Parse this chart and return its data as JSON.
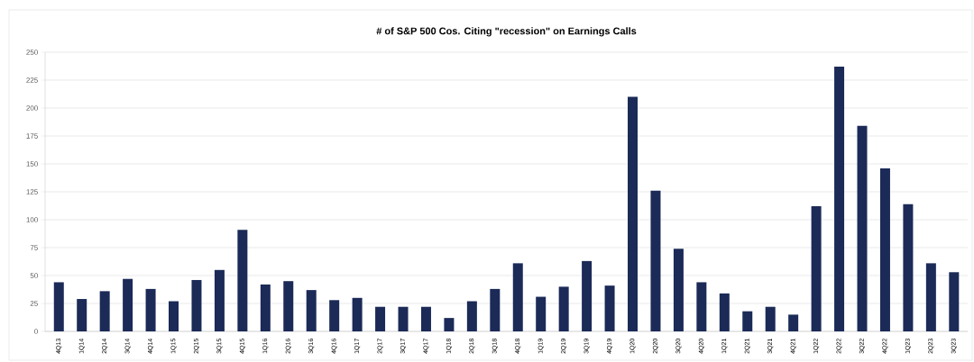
{
  "chart_data": {
    "type": "bar",
    "title": "# of S&P 500 Cos. Citing \"recession\" on Earnings Calls",
    "categories": [
      "4Q13",
      "1Q14",
      "2Q14",
      "3Q14",
      "4Q14",
      "1Q15",
      "2Q15",
      "3Q15",
      "4Q15",
      "1Q16",
      "2Q16",
      "3Q16",
      "4Q16",
      "1Q17",
      "2Q17",
      "3Q17",
      "4Q17",
      "1Q18",
      "2Q18",
      "3Q18",
      "4Q18",
      "1Q19",
      "2Q19",
      "3Q19",
      "4Q19",
      "1Q20",
      "2Q20",
      "3Q20",
      "4Q20",
      "1Q21",
      "2Q21",
      "3Q21",
      "4Q21",
      "1Q22",
      "2Q22",
      "3Q22",
      "4Q22",
      "1Q23",
      "2Q23",
      "3Q23"
    ],
    "values": [
      44,
      29,
      36,
      47,
      38,
      27,
      46,
      55,
      91,
      42,
      45,
      37,
      28,
      30,
      22,
      22,
      22,
      12,
      27,
      38,
      61,
      31,
      40,
      63,
      41,
      210,
      126,
      74,
      44,
      34,
      18,
      22,
      15,
      112,
      237,
      184,
      146,
      114,
      61,
      53
    ],
    "color": "#1b2a57",
    "ylim": [
      0,
      250
    ],
    "yticks": [
      0,
      25,
      50,
      75,
      100,
      125,
      150,
      175,
      200,
      225,
      250
    ],
    "grid": "y"
  }
}
